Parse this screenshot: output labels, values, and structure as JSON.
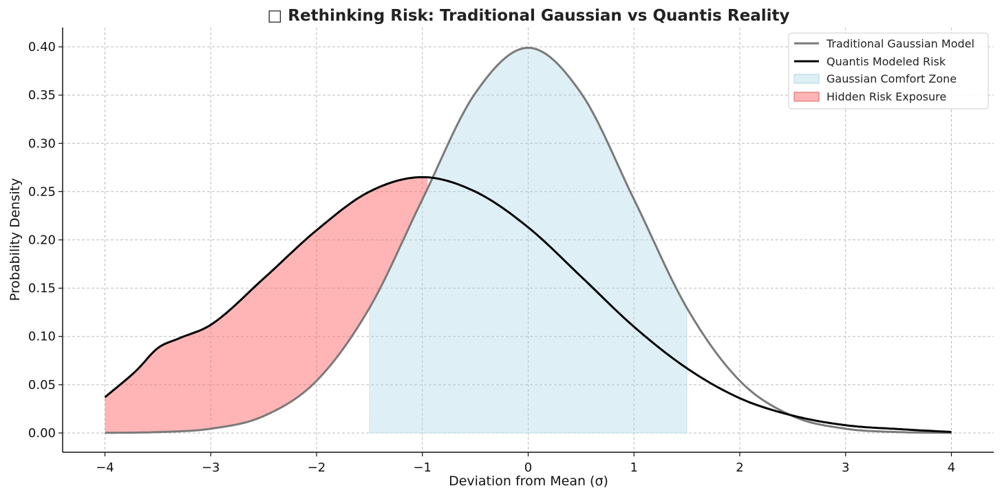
{
  "chart_data": {
    "type": "line",
    "title": "□ Rethinking Risk: Traditional Gaussian vs Quantis Reality",
    "xlabel": "Deviation from Mean (σ)",
    "ylabel": "Probability Density",
    "xlim": [
      -4.4,
      4.4
    ],
    "ylim": [
      -0.02,
      0.42
    ],
    "x_ticks": [
      -4,
      -3,
      -2,
      -1,
      0,
      1,
      2,
      3,
      4
    ],
    "x_tick_labels": [
      "−4",
      "−3",
      "−2",
      "−1",
      "0",
      "1",
      "2",
      "3",
      "4"
    ],
    "y_ticks": [
      0.0,
      0.05,
      0.1,
      0.15,
      0.2,
      0.25,
      0.3,
      0.35,
      0.4
    ],
    "y_tick_labels": [
      "0.00",
      "0.05",
      "0.10",
      "0.15",
      "0.20",
      "0.25",
      "0.30",
      "0.35",
      "0.40"
    ],
    "grid": true,
    "legend_position": "top-right",
    "series": [
      {
        "name": "Traditional Gaussian Model",
        "color": "#7a7a7a",
        "x": [
          -4,
          -3.5,
          -3,
          -2.5,
          -2,
          -1.5,
          -1,
          -0.5,
          0,
          0.5,
          1,
          1.5,
          2,
          2.5,
          3,
          3.5,
          4
        ],
        "y": [
          0.0001,
          0.0009,
          0.0044,
          0.0175,
          0.054,
          0.1295,
          0.242,
          0.352,
          0.399,
          0.352,
          0.242,
          0.1295,
          0.054,
          0.0175,
          0.0044,
          0.0009,
          0.0001
        ]
      },
      {
        "name": "Quantis Modeled Risk",
        "color": "#000000",
        "x": [
          -4,
          -3.7,
          -3.5,
          -3.3,
          -3,
          -2.5,
          -2,
          -1.5,
          -1,
          -0.5,
          0,
          0.5,
          1,
          1.5,
          2,
          2.5,
          3,
          3.5,
          4
        ],
        "y": [
          0.037,
          0.065,
          0.088,
          0.098,
          0.112,
          0.16,
          0.21,
          0.25,
          0.265,
          0.25,
          0.213,
          0.162,
          0.11,
          0.067,
          0.036,
          0.018,
          0.008,
          0.004,
          0.001
        ]
      }
    ],
    "shaded_regions": [
      {
        "name": "Gaussian Comfort Zone",
        "color": "#add8e6",
        "type": "under_gaussian",
        "x_range": [
          -1.5,
          1.5
        ]
      },
      {
        "name": "Hidden Risk Exposure",
        "color": "#ff6b6b",
        "type": "between_curves",
        "x_range": [
          -4,
          -0.95
        ]
      }
    ]
  }
}
